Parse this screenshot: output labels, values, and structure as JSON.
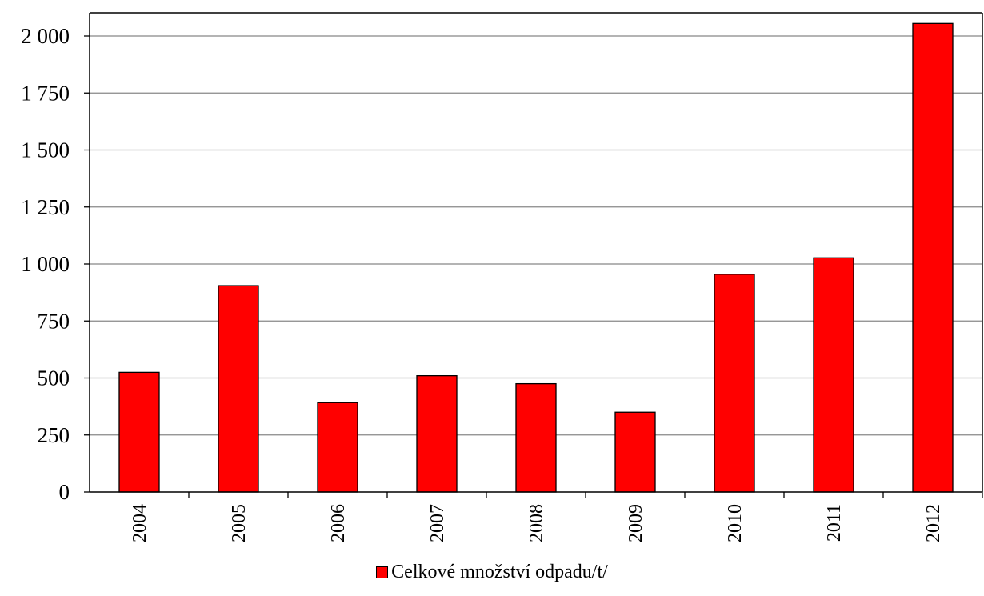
{
  "chart_data": {
    "type": "bar",
    "title": "",
    "xlabel": "",
    "ylabel": "",
    "categories": [
      "2004",
      "2005",
      "2006",
      "2007",
      "2008",
      "2009",
      "2010",
      "2011",
      "2012"
    ],
    "series": [
      {
        "name": "Celkové množství odpadu/t/",
        "values": [
          525,
          905,
          392,
          510,
          475,
          350,
          955,
          1027,
          2055
        ],
        "color": "#ff0000"
      }
    ],
    "ylim": [
      0,
      2000
    ],
    "yticks": [
      0,
      250,
      500,
      750,
      1000,
      1250,
      1500,
      1750,
      2000
    ],
    "ytick_labels": [
      "0",
      "250",
      "500",
      "750",
      "1 000",
      "1 250",
      "1 500",
      "1 750",
      "2 000"
    ],
    "grid": true,
    "legend_position": "bottom-center",
    "x_tick_rotation": "vertical"
  }
}
